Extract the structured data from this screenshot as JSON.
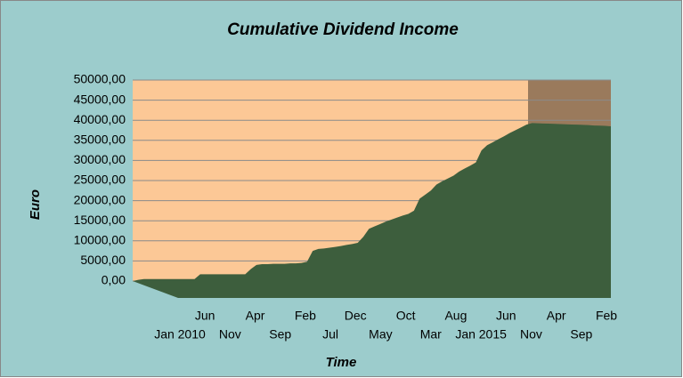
{
  "chart_data": {
    "type": "area",
    "title": "Cumulative Dividend Income",
    "x_label": "Time",
    "y_label": "Euro",
    "categories": [
      "Jan 2010",
      null,
      null,
      null,
      null,
      "Jun",
      null,
      null,
      null,
      null,
      "Nov",
      null,
      null,
      null,
      null,
      "Apr",
      null,
      null,
      null,
      null,
      "Sep",
      null,
      null,
      null,
      null,
      "Feb",
      null,
      null,
      null,
      null,
      "Jul",
      null,
      null,
      null,
      null,
      "Dec",
      null,
      null,
      null,
      null,
      "May",
      null,
      null,
      null,
      null,
      "Oct",
      null,
      null,
      null,
      null,
      "Mar",
      null,
      null,
      null,
      null,
      "Aug",
      null,
      null,
      null,
      null,
      "Jan 2015",
      null,
      null,
      null,
      null,
      "Jun",
      null,
      null,
      null,
      null,
      "Nov",
      null,
      null,
      null,
      null,
      "Apr",
      null,
      null,
      null,
      null,
      "Sep",
      null,
      null,
      null,
      null,
      "Feb"
    ],
    "values": [
      0,
      300,
      500,
      500,
      500,
      500,
      500,
      500,
      500,
      500,
      500,
      500,
      1700,
      1700,
      1700,
      1700,
      1700,
      1700,
      1700,
      1700,
      1700,
      3000,
      4000,
      4200,
      4200,
      4300,
      4300,
      4300,
      4400,
      4400,
      4500,
      4800,
      7500,
      8000,
      8100,
      8300,
      8500,
      8700,
      9000,
      9200,
      9500,
      11000,
      13000,
      13600,
      14200,
      14800,
      15300,
      15800,
      16300,
      16700,
      17500,
      20500,
      21500,
      22500,
      24000,
      24800,
      25500,
      26200,
      27200,
      28000,
      28700,
      29500,
      32500,
      33800,
      34500,
      35300,
      36000,
      36800,
      37500,
      38200,
      38900,
      39300,
      39250,
      39200,
      39150,
      39100,
      39050,
      39000,
      38950,
      38900,
      38850,
      38800,
      38700,
      38650,
      38600,
      38500
    ],
    "color": "#3d5e3d",
    "ylim": [
      0,
      50000
    ],
    "yticks": [
      {
        "value": 0,
        "label": "0,00"
      },
      {
        "value": 5000,
        "label": "5000,00"
      },
      {
        "value": 10000,
        "label": "10000,00"
      },
      {
        "value": 15000,
        "label": "15000,00"
      },
      {
        "value": 20000,
        "label": "20000,00"
      },
      {
        "value": 25000,
        "label": "25000,00"
      },
      {
        "value": 30000,
        "label": "30000,00"
      },
      {
        "value": 35000,
        "label": "35000,00"
      },
      {
        "value": 40000,
        "label": "40000,00"
      },
      {
        "value": 45000,
        "label": "45000,00"
      },
      {
        "value": 50000,
        "label": "50000,00"
      }
    ],
    "grid": true
  }
}
